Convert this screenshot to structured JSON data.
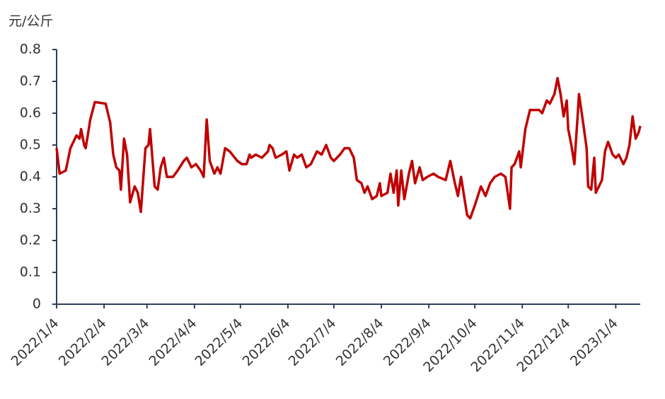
{
  "chart_data": {
    "type": "line",
    "y_axis_label": "元/公斤",
    "x": [
      "2022/1/4",
      "2022/1/6",
      "2022/1/10",
      "2022/1/13",
      "2022/1/17",
      "2022/1/19",
      "2022/1/20",
      "2022/1/22",
      "2022/1/23",
      "2022/1/25",
      "2022/1/26",
      "2022/1/29",
      "2022/2/5",
      "2022/2/8",
      "2022/2/10",
      "2022/2/12",
      "2022/2/14",
      "2022/2/15",
      "2022/2/17",
      "2022/2/19",
      "2022/2/21",
      "2022/2/24",
      "2022/2/26",
      "2022/2/28",
      "2022/3/3",
      "2022/3/5",
      "2022/3/6",
      "2022/3/9",
      "2022/3/11",
      "2022/3/13",
      "2022/3/15",
      "2022/3/17",
      "2022/3/21",
      "2022/3/24",
      "2022/3/28",
      "2022/3/30",
      "2022/4/2",
      "2022/4/5",
      "2022/4/8",
      "2022/4/10",
      "2022/4/12",
      "2022/4/14",
      "2022/4/17",
      "2022/4/19",
      "2022/4/21",
      "2022/4/24",
      "2022/4/27",
      "2022/5/2",
      "2022/5/5",
      "2022/5/8",
      "2022/5/10",
      "2022/5/11",
      "2022/5/14",
      "2022/5/18",
      "2022/5/22",
      "2022/5/23",
      "2022/5/25",
      "2022/5/27",
      "2022/5/31",
      "2022/6/3",
      "2022/6/5",
      "2022/6/8",
      "2022/6/10",
      "2022/6/13",
      "2022/6/16",
      "2022/6/19",
      "2022/6/23",
      "2022/6/26",
      "2022/6/29",
      "2022/7/2",
      "2022/7/4",
      "2022/7/8",
      "2022/7/11",
      "2022/7/14",
      "2022/7/17",
      "2022/7/19",
      "2022/7/22",
      "2022/7/24",
      "2022/7/26",
      "2022/7/29",
      "2022/8/1",
      "2022/8/3",
      "2022/8/4",
      "2022/8/8",
      "2022/8/10",
      "2022/8/12",
      "2022/8/14",
      "2022/8/15",
      "2022/8/17",
      "2022/8/19",
      "2022/8/22",
      "2022/8/24",
      "2022/8/26",
      "2022/8/29",
      "2022/8/31",
      "2022/9/3",
      "2022/9/7",
      "2022/9/10",
      "2022/9/15",
      "2022/9/18",
      "2022/9/21",
      "2022/9/23",
      "2022/9/25",
      "2022/9/29",
      "2022/10/1",
      "2022/10/4",
      "2022/10/8",
      "2022/10/11",
      "2022/10/14",
      "2022/10/17",
      "2022/10/21",
      "2022/10/24",
      "2022/10/27",
      "2022/10/28",
      "2022/10/30",
      "2022/11/2",
      "2022/11/3",
      "2022/11/6",
      "2022/11/9",
      "2022/11/12",
      "2022/11/15",
      "2022/11/17",
      "2022/11/20",
      "2022/11/22",
      "2022/11/25",
      "2022/11/27",
      "2022/11/29",
      "2022/12/1",
      "2022/12/3",
      "2022/12/4",
      "2022/12/6",
      "2022/12/8",
      "2022/12/10",
      "2022/12/11",
      "2022/12/14",
      "2022/12/16",
      "2022/12/17",
      "2022/12/19",
      "2022/12/21",
      "2022/12/22",
      "2022/12/26",
      "2022/12/28",
      "2022/12/30",
      "2023/1/2",
      "2023/1/4",
      "2023/1/6",
      "2023/1/9",
      "2023/1/11",
      "2023/1/13",
      "2023/1/15",
      "2023/1/17",
      "2023/1/19",
      "2023/1/20"
    ],
    "series": [
      {
        "color": "#c00000",
        "values": [
          0.49,
          0.41,
          0.42,
          0.49,
          0.53,
          0.52,
          0.55,
          0.5,
          0.49,
          0.55,
          0.58,
          0.635,
          0.63,
          0.57,
          0.47,
          0.43,
          0.42,
          0.36,
          0.52,
          0.47,
          0.32,
          0.37,
          0.35,
          0.29,
          0.49,
          0.5,
          0.55,
          0.37,
          0.36,
          0.43,
          0.46,
          0.4,
          0.4,
          0.42,
          0.45,
          0.46,
          0.43,
          0.44,
          0.42,
          0.4,
          0.58,
          0.45,
          0.41,
          0.43,
          0.41,
          0.49,
          0.48,
          0.45,
          0.44,
          0.44,
          0.47,
          0.46,
          0.47,
          0.46,
          0.48,
          0.5,
          0.49,
          0.46,
          0.47,
          0.48,
          0.42,
          0.47,
          0.46,
          0.47,
          0.43,
          0.44,
          0.48,
          0.47,
          0.5,
          0.46,
          0.45,
          0.47,
          0.49,
          0.49,
          0.46,
          0.39,
          0.38,
          0.35,
          0.37,
          0.33,
          0.34,
          0.38,
          0.34,
          0.35,
          0.41,
          0.35,
          0.42,
          0.31,
          0.42,
          0.33,
          0.41,
          0.45,
          0.38,
          0.43,
          0.39,
          0.4,
          0.41,
          0.4,
          0.39,
          0.45,
          0.38,
          0.34,
          0.4,
          0.28,
          0.27,
          0.31,
          0.37,
          0.34,
          0.38,
          0.4,
          0.41,
          0.4,
          0.3,
          0.43,
          0.44,
          0.48,
          0.43,
          0.55,
          0.61,
          0.61,
          0.61,
          0.6,
          0.64,
          0.63,
          0.66,
          0.71,
          0.66,
          0.59,
          0.64,
          0.55,
          0.5,
          0.44,
          0.58,
          0.66,
          0.56,
          0.49,
          0.37,
          0.36,
          0.46,
          0.35,
          0.39,
          0.48,
          0.51,
          0.47,
          0.46,
          0.47,
          0.44,
          0.46,
          0.5,
          0.59,
          0.52,
          0.54,
          0.56
        ]
      }
    ],
    "xlim": [
      "2022/1/4",
      "2023/1/20"
    ],
    "xticks": [
      "2022/1/4",
      "2022/2/4",
      "2022/3/4",
      "2022/4/4",
      "2022/5/4",
      "2022/6/4",
      "2022/7/4",
      "2022/8/4",
      "2022/9/4",
      "2022/10/4",
      "2022/11/4",
      "2022/12/4",
      "2023/1/4"
    ],
    "ylim": [
      0,
      0.8
    ],
    "yticks": [
      0,
      0.1,
      0.2,
      0.3,
      0.4,
      0.5,
      0.6,
      0.7,
      0.8
    ]
  }
}
